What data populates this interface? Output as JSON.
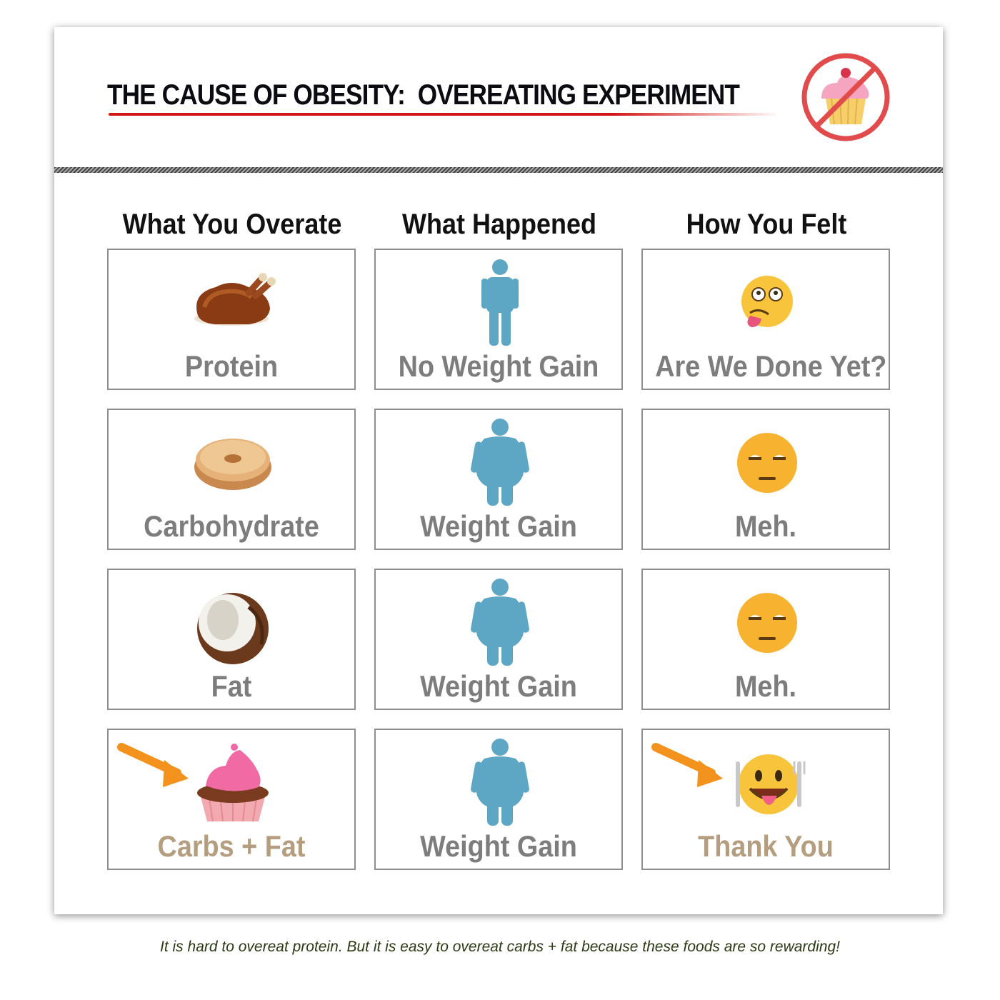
{
  "header": {
    "title": "THE CAUSE OF OBESITY:  OVEREATING EXPERIMENT",
    "badge_icon": "no-cupcake-icon"
  },
  "columns": [
    "What You Overate",
    "What Happened",
    "How You Felt"
  ],
  "rows": [
    {
      "food": {
        "label": "Protein",
        "icon": "roast-chicken-icon"
      },
      "result": {
        "label": "No Weight Gain",
        "icon": "slim-person-icon"
      },
      "feeling": {
        "label": "Are We Done Yet?",
        "icon": "nauseated-face-icon"
      }
    },
    {
      "food": {
        "label": "Carbohydrate",
        "icon": "bagel-icon"
      },
      "result": {
        "label": "Weight Gain",
        "icon": "heavy-person-icon"
      },
      "feeling": {
        "label": "Meh.",
        "icon": "unamused-face-icon"
      }
    },
    {
      "food": {
        "label": "Fat",
        "icon": "coconut-icon"
      },
      "result": {
        "label": "Weight Gain",
        "icon": "heavy-person-icon"
      },
      "feeling": {
        "label": "Meh.",
        "icon": "unamused-face-icon"
      }
    },
    {
      "food": {
        "label": "Carbs + Fat",
        "icon": "cupcake-icon"
      },
      "result": {
        "label": "Weight Gain",
        "icon": "heavy-person-icon"
      },
      "feeling": {
        "label": "Thank You",
        "icon": "savoring-face-icon"
      }
    }
  ],
  "colors": {
    "person": "#5ea7c4",
    "label": "#7d7d7d",
    "highlight_label": "#b59e80",
    "arrow": "#f4921e",
    "title_underline": "#d11616"
  },
  "caption": "It is hard to overeat protein. But it is easy to overeat carbs + fat because these foods are so rewarding!"
}
